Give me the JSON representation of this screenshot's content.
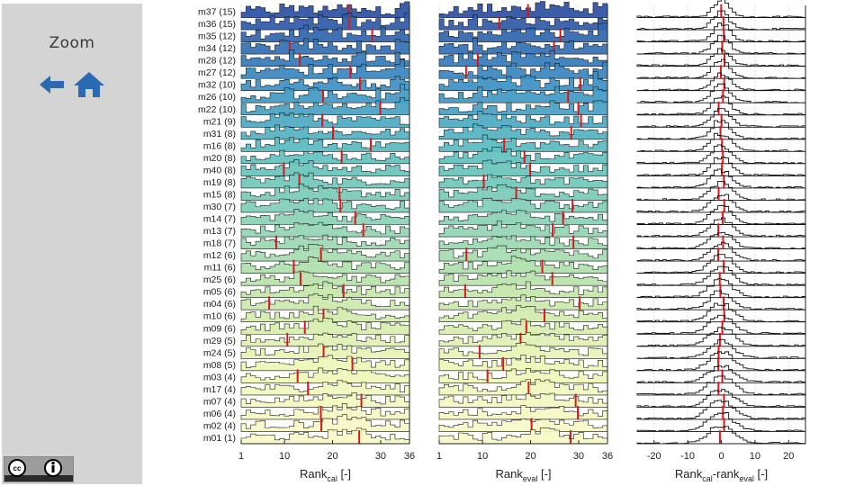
{
  "sidebar": {
    "zoom_label": "Zoom",
    "back_icon": "arrow-left-icon",
    "home_icon": "home-icon",
    "license_badge": "cc-by-icon"
  },
  "chart_data": {
    "type": "histogram-panels",
    "rows": [
      {
        "model": "m37",
        "n": "(15)"
      },
      {
        "model": "m36",
        "n": "(15)"
      },
      {
        "model": "m35",
        "n": "(12)"
      },
      {
        "model": "m34",
        "n": "(12)"
      },
      {
        "model": "m28",
        "n": "(12)"
      },
      {
        "model": "m27",
        "n": "(12)"
      },
      {
        "model": "m32",
        "n": "(10)"
      },
      {
        "model": "m26",
        "n": "(10)"
      },
      {
        "model": "m22",
        "n": "(10)"
      },
      {
        "model": "m21",
        "n": "(9)"
      },
      {
        "model": "m31",
        "n": "(8)"
      },
      {
        "model": "m16",
        "n": "(8)"
      },
      {
        "model": "m20",
        "n": "(8)"
      },
      {
        "model": "m40",
        "n": "(8)"
      },
      {
        "model": "m19",
        "n": "(8)"
      },
      {
        "model": "m15",
        "n": "(8)"
      },
      {
        "model": "m30",
        "n": "(7)"
      },
      {
        "model": "m14",
        "n": "(7)"
      },
      {
        "model": "m13",
        "n": "(7)"
      },
      {
        "model": "m18",
        "n": "(7)"
      },
      {
        "model": "m12",
        "n": "(6)"
      },
      {
        "model": "m11",
        "n": "(6)"
      },
      {
        "model": "m25",
        "n": "(6)"
      },
      {
        "model": "m05",
        "n": "(6)"
      },
      {
        "model": "m04",
        "n": "(6)"
      },
      {
        "model": "m10",
        "n": "(6)"
      },
      {
        "model": "m09",
        "n": "(6)"
      },
      {
        "model": "m29",
        "n": "(5)"
      },
      {
        "model": "m24",
        "n": "(5)"
      },
      {
        "model": "m08",
        "n": "(5)"
      },
      {
        "model": "m03",
        "n": "(4)"
      },
      {
        "model": "m17",
        "n": "(4)"
      },
      {
        "model": "m07",
        "n": "(4)"
      },
      {
        "model": "m06",
        "n": "(4)"
      },
      {
        "model": "m02",
        "n": "(4)"
      },
      {
        "model": "m01",
        "n": "(1)"
      }
    ],
    "row_label_template": "{model} {n}",
    "panels": [
      {
        "id": "cal",
        "xlim": [
          1,
          36
        ],
        "ticks": [
          "1",
          "10",
          "20",
          "30",
          "36"
        ],
        "tick_values": [
          1,
          10,
          20,
          30,
          36
        ],
        "xlabel_main": "Rank",
        "xlabel_sub": "cal",
        "xlabel_suffix": " [-]"
      },
      {
        "id": "eval",
        "xlim": [
          1,
          36
        ],
        "ticks": [
          "1",
          "10",
          "20",
          "30",
          "36"
        ],
        "tick_values": [
          1,
          10,
          20,
          30,
          36
        ],
        "xlabel_main": "Rank",
        "xlabel_sub": "eval",
        "xlabel_suffix": " [-]"
      },
      {
        "id": "diff",
        "xlim": [
          -25,
          25
        ],
        "ticks": [
          "-20",
          "-10",
          "0",
          "10",
          "20"
        ],
        "tick_values": [
          -20,
          -10,
          0,
          10,
          20
        ],
        "xlabel_main": "Rank",
        "xlabel_sub": "cal",
        "xlabel_mid": "-rank",
        "xlabel_sub2": "eval",
        "xlabel_suffix": " [-]"
      }
    ],
    "median_marker_color": "#d7191c",
    "colormap": [
      "#2b4fa3",
      "#3a8fc5",
      "#5cc0c0",
      "#8dd3b4",
      "#c6e7a8",
      "#eef6b6",
      "#f8fac8"
    ]
  },
  "colors": {
    "sidebar_bg": "#d4d4d4",
    "arrow_blue": "#2a6ab2",
    "axis": "#222222",
    "grid": "#dddddd"
  }
}
